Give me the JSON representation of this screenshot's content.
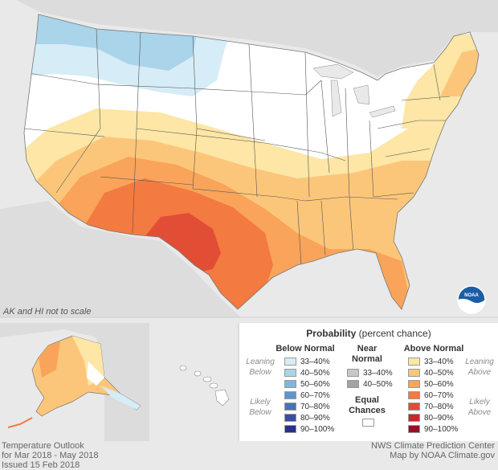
{
  "note": "AK and HI not to scale",
  "legend": {
    "title_bold": "Probability",
    "title_rest": " (percent chance)",
    "below": {
      "header": "Below Normal",
      "side_top": [
        "Leaning",
        "Below"
      ],
      "side_bottom": [
        "Likely",
        "Below"
      ],
      "items": [
        {
          "label": "33–40%",
          "color": "#d6ecf6"
        },
        {
          "label": "40–50%",
          "color": "#a9d4ea"
        },
        {
          "label": "50–60%",
          "color": "#7db7dc"
        },
        {
          "label": "60–70%",
          "color": "#5d96cb"
        },
        {
          "label": "70–80%",
          "color": "#4a72b6"
        },
        {
          "label": "80–90%",
          "color": "#384ea1"
        },
        {
          "label": "90–100%",
          "color": "#27318c"
        }
      ]
    },
    "near": {
      "header": [
        "Near",
        "Normal"
      ],
      "items": [
        {
          "label": "33–40%",
          "color": "#c7c7c7"
        },
        {
          "label": "40–50%",
          "color": "#a3a3a3"
        }
      ],
      "equal_header": [
        "Equal",
        "Chances"
      ],
      "equal_color": "#ffffff"
    },
    "above": {
      "header": "Above Normal",
      "side_top": [
        "Leaning",
        "Above"
      ],
      "side_bottom": [
        "Likely",
        "Above"
      ],
      "items": [
        {
          "label": "33–40%",
          "color": "#fde6a6"
        },
        {
          "label": "40–50%",
          "color": "#fcc67a"
        },
        {
          "label": "50–60%",
          "color": "#f9a45a"
        },
        {
          "label": "60–70%",
          "color": "#f37a40"
        },
        {
          "label": "70–80%",
          "color": "#e14d35"
        },
        {
          "label": "80–90%",
          "color": "#c42a2d"
        },
        {
          "label": "90–100%",
          "color": "#970f24"
        }
      ]
    }
  },
  "footer_left": [
    "Temperature Outlook",
    "for Mar 2018 - May 2018",
    "Issued 15 Feb 2018"
  ],
  "footer_right": [
    "NWS Climate Prediction Center",
    "Map by NOAA Climate.gov"
  ],
  "logo": {
    "icon": "noaa-logo",
    "text": "NOAA"
  },
  "colors": {
    "land": "#ffffff",
    "background": "#e9e9e9",
    "lean_above": "#fde6a6",
    "above_40_50": "#fcc67a",
    "above_50_60": "#f9a45a",
    "above_60_70": "#f37a40",
    "above_70_80": "#e14d35",
    "lean_below": "#d6ecf6",
    "below_40_50": "#a9d4ea"
  }
}
